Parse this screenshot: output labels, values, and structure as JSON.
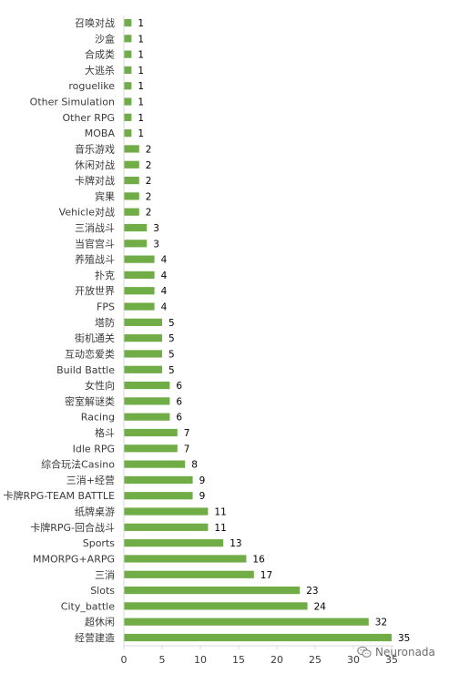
{
  "chart_data": {
    "type": "bar",
    "orientation": "horizontal",
    "categories": [
      "召唤对战",
      "沙盒",
      "合成类",
      "大逃杀",
      "roguelike",
      "Other Simulation",
      "Other RPG",
      "MOBA",
      "音乐游戏",
      "休闲对战",
      "卡牌对战",
      "宾果",
      "Vehicle对战",
      "三消战斗",
      "当官宫斗",
      "养殖战斗",
      "扑克",
      "开放世界",
      "FPS",
      "塔防",
      "街机通关",
      "互动恋爱类",
      "Build Battle",
      "女性向",
      "密室解谜类",
      "Racing",
      "格斗",
      "Idle RPG",
      "综合玩法Casino",
      "三消+经营",
      "卡牌RPG-TEAM BATTLE",
      "纸牌桌游",
      "卡牌RPG-回合战斗",
      "Sports",
      "MMORPG+ARPG",
      "三消",
      "Slots",
      "City_battle",
      "超休闲",
      "经营建造"
    ],
    "values": [
      1,
      1,
      1,
      1,
      1,
      1,
      1,
      1,
      2,
      2,
      2,
      2,
      2,
      3,
      3,
      4,
      4,
      4,
      4,
      5,
      5,
      5,
      5,
      6,
      6,
      6,
      7,
      7,
      8,
      9,
      9,
      11,
      11,
      13,
      16,
      17,
      23,
      24,
      32,
      35
    ],
    "xlim": [
      0,
      35
    ],
    "xticks": [
      0,
      5,
      10,
      15,
      20,
      25,
      30,
      35
    ],
    "title": "",
    "xlabel": "",
    "ylabel": "",
    "grid": false,
    "bar_color": "#70ad47",
    "data_labels": true
  },
  "watermark": {
    "text": "Neuronada",
    "icon": "wechat-icon"
  },
  "colors": {
    "axis": "#d9d9d9",
    "text": "#3a3a3a"
  }
}
